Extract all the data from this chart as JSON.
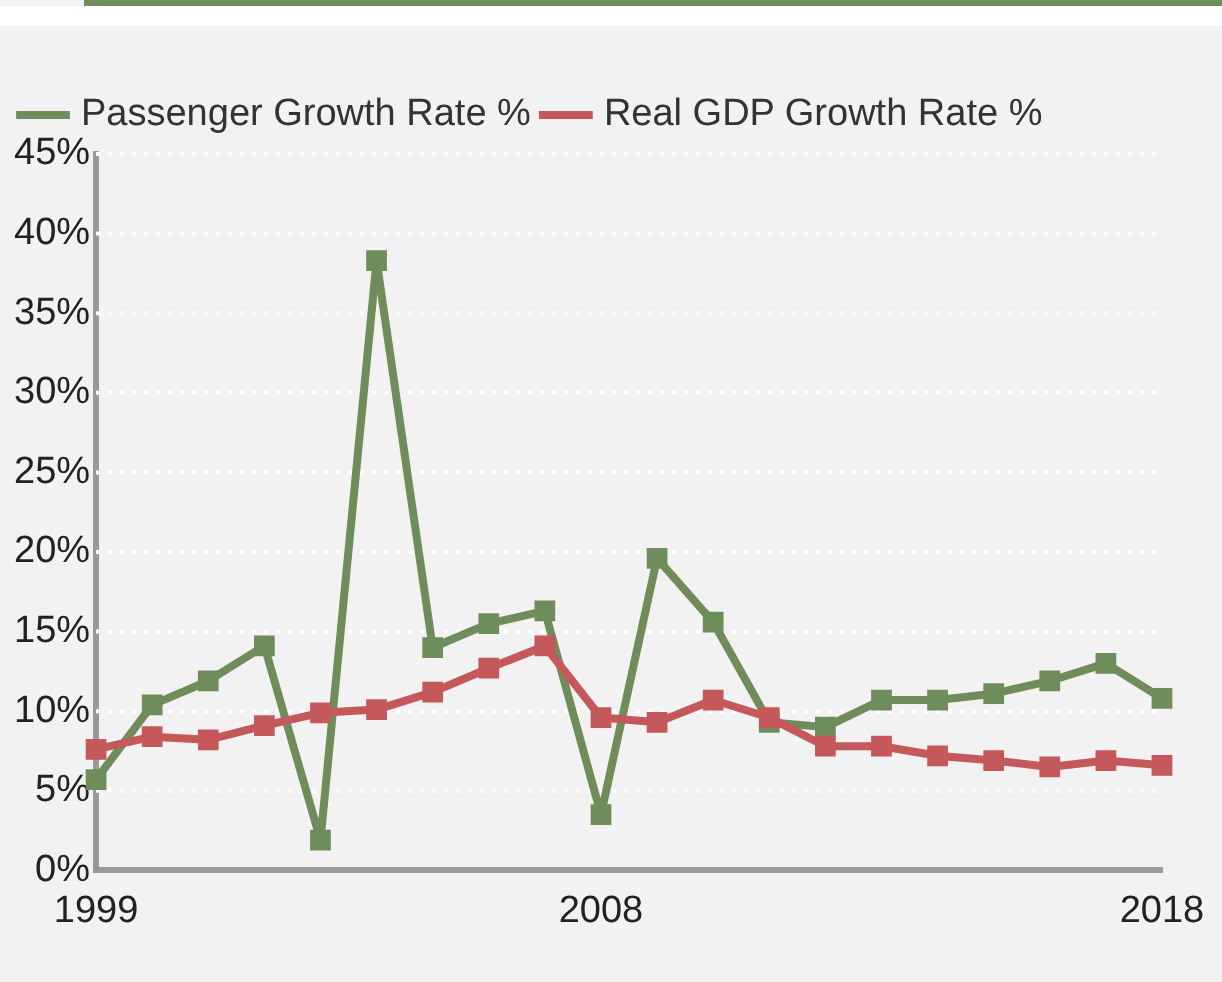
{
  "chart_data": {
    "type": "line",
    "categories": [
      "1999",
      null,
      null,
      null,
      null,
      null,
      null,
      null,
      null,
      "2008",
      null,
      null,
      null,
      null,
      null,
      null,
      null,
      null,
      null,
      "2018"
    ],
    "series": [
      {
        "name": "Passenger Growth Rate %",
        "color": "#6f8c5b",
        "values": [
          5.7,
          10.4,
          11.9,
          14.1,
          1.9,
          38.3,
          14.0,
          15.5,
          16.3,
          3.5,
          19.6,
          15.6,
          9.3,
          9.0,
          10.7,
          10.7,
          11.1,
          11.9,
          13.0,
          10.8
        ]
      },
      {
        "name": "Real GDP Growth Rate %",
        "color": "#c4585a",
        "values": [
          7.6,
          8.4,
          8.2,
          9.1,
          9.9,
          10.1,
          11.2,
          12.7,
          14.1,
          9.6,
          9.3,
          10.7,
          9.6,
          7.8,
          7.8,
          7.2,
          6.9,
          6.5,
          6.9,
          6.6
        ]
      }
    ],
    "ylim": [
      0,
      45
    ],
    "yticks": [
      {
        "value": 0,
        "label": "0%"
      },
      {
        "value": 5,
        "label": "5%"
      },
      {
        "value": 10,
        "label": "10%"
      },
      {
        "value": 15,
        "label": "15%"
      },
      {
        "value": 20,
        "label": "20%"
      },
      {
        "value": 25,
        "label": "25%"
      },
      {
        "value": 30,
        "label": "30%"
      },
      {
        "value": 35,
        "label": "35%"
      },
      {
        "value": 40,
        "label": "40%"
      },
      {
        "value": 45,
        "label": "45%"
      }
    ],
    "grid": "y",
    "legend": "top left",
    "marker": "square",
    "line_style": "solid"
  }
}
